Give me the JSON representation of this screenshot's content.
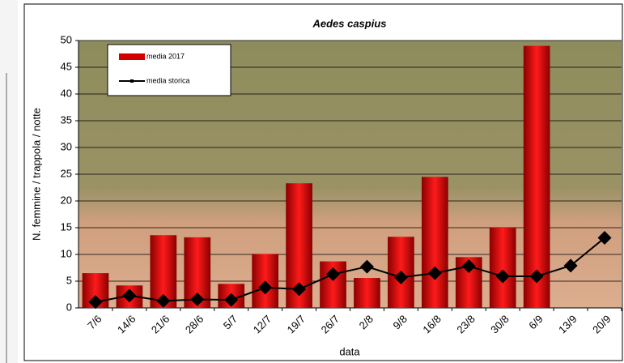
{
  "chart_data": {
    "type": "bar",
    "title": "Aedes caspius",
    "x_label": "data",
    "y_label": "N. femmine / trappola / notte",
    "categories": [
      "7/6",
      "14/6",
      "21/6",
      "28/6",
      "5/7",
      "12/7",
      "19/7",
      "26/7",
      "2/8",
      "9/8",
      "16/8",
      "23/8",
      "30/8",
      "6/9",
      "13/9",
      "20/9"
    ],
    "series": [
      {
        "name": "media 2017",
        "kind": "bar",
        "color": "#d40000",
        "values": [
          6.5,
          4.2,
          13.6,
          13.2,
          4.5,
          10.1,
          23.3,
          8.7,
          5.6,
          13.3,
          24.5,
          9.5,
          15.0,
          49.0,
          null,
          null
        ]
      },
      {
        "name": "media storica",
        "kind": "line",
        "color": "#000000",
        "values": [
          1.1,
          2.3,
          1.3,
          1.6,
          1.5,
          3.8,
          3.5,
          6.3,
          7.7,
          5.7,
          6.5,
          7.8,
          5.9,
          5.9,
          7.9,
          13.1
        ]
      }
    ],
    "ylim": [
      0,
      50
    ],
    "yticks": [
      0,
      5,
      10,
      15,
      20,
      25,
      30,
      35,
      40,
      45,
      50
    ],
    "grid": true,
    "legend": "top-left"
  }
}
